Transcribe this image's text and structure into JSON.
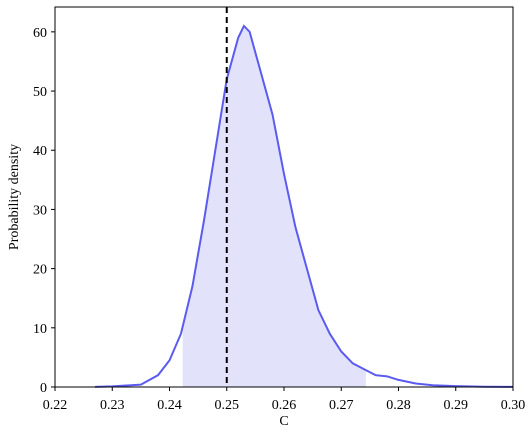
{
  "chart_data": {
    "type": "density",
    "x_label": "C",
    "y_label": "Probability density",
    "x": [
      0.227,
      0.23,
      0.235,
      0.238,
      0.24,
      0.242,
      0.244,
      0.246,
      0.248,
      0.25,
      0.252,
      0.253,
      0.254,
      0.256,
      0.258,
      0.26,
      0.262,
      0.264,
      0.266,
      0.268,
      0.27,
      0.272,
      0.274,
      0.276,
      0.278,
      0.28,
      0.283,
      0.286,
      0.29,
      0.295,
      0.3
    ],
    "values": [
      0.02,
      0.1,
      0.4,
      2,
      4.5,
      9,
      17,
      28,
      40,
      52,
      59,
      61,
      60,
      53,
      46,
      36,
      27,
      20,
      13,
      9,
      6,
      4,
      3,
      2,
      1.8,
      1.2,
      0.6,
      0.3,
      0.15,
      0.05,
      0.02
    ],
    "color": "#5b5bef",
    "fill_color": "#e2e2fb",
    "interval": [
      0.2423,
      0.2743
    ],
    "reference_line": 0.25,
    "reference_color": "#000000",
    "xlim": [
      0.22,
      0.3
    ],
    "ylim": [
      0,
      64.2
    ],
    "xticks": [
      0.22,
      0.23,
      0.24,
      0.25,
      0.26,
      0.27,
      0.28,
      0.29,
      {
        "value": 0.3,
        "label": "0.30"
      }
    ],
    "yticks": [
      0,
      10,
      20,
      30,
      40,
      50,
      60
    ]
  }
}
